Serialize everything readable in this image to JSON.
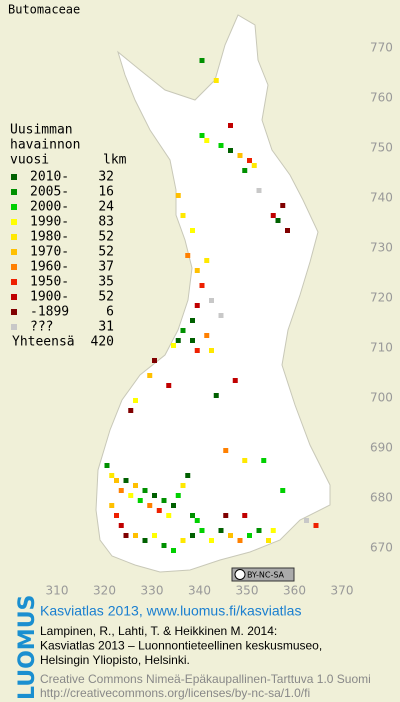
{
  "title": "Butomaceae",
  "legend": {
    "header": [
      "Uusimman",
      "havainnon",
      "vuosi"
    ],
    "count_header": "lkm",
    "rows": [
      {
        "label": "2010-",
        "count": 32,
        "color": "#006000"
      },
      {
        "label": "2005-",
        "count": 16,
        "color": "#009000"
      },
      {
        "label": "2000-",
        "count": 24,
        "color": "#00d000"
      },
      {
        "label": "1990-",
        "count": 83,
        "color": "#ffff00"
      },
      {
        "label": "1980-",
        "count": 52,
        "color": "#ffe800"
      },
      {
        "label": "1970-",
        "count": 52,
        "color": "#ffc000"
      },
      {
        "label": "1960-",
        "count": 37,
        "color": "#ff8000"
      },
      {
        "label": "1950-",
        "count": 35,
        "color": "#ee2000"
      },
      {
        "label": "1900-",
        "count": 52,
        "color": "#c00000"
      },
      {
        "label": "-1899",
        "count": 6,
        "color": "#800000"
      },
      {
        "label": "???",
        "count": 31,
        "color": "#c8c8c8"
      }
    ],
    "total_label": "Yhteensä",
    "total": 420
  },
  "map": {
    "xticks": [
      310,
      320,
      330,
      340,
      350,
      360,
      370
    ],
    "yticks": [
      770,
      760,
      750,
      740,
      730,
      720,
      710,
      700,
      690,
      680,
      670
    ],
    "records": [
      [
        340,
        767,
        1
      ],
      [
        343,
        763,
        4
      ],
      [
        340,
        752,
        2
      ],
      [
        341,
        751,
        3
      ],
      [
        344,
        750,
        2
      ],
      [
        346,
        749,
        0
      ],
      [
        348,
        748,
        5
      ],
      [
        350,
        747,
        7
      ],
      [
        349,
        745,
        1
      ],
      [
        351,
        746,
        4
      ],
      [
        346,
        754,
        8
      ],
      [
        352,
        741,
        10
      ],
      [
        355,
        736,
        8
      ],
      [
        357,
        738,
        9
      ],
      [
        358,
        733,
        9
      ],
      [
        356,
        735,
        0
      ],
      [
        335,
        740,
        5
      ],
      [
        336,
        736,
        4
      ],
      [
        338,
        733,
        3
      ],
      [
        337,
        728,
        6
      ],
      [
        339,
        725,
        5
      ],
      [
        340,
        722,
        7
      ],
      [
        339,
        718,
        8
      ],
      [
        338,
        715,
        0
      ],
      [
        336,
        713,
        1
      ],
      [
        335,
        711,
        0
      ],
      [
        334,
        710,
        3
      ],
      [
        338,
        711,
        0
      ],
      [
        339,
        709,
        7
      ],
      [
        342,
        709,
        4
      ],
      [
        341,
        712,
        6
      ],
      [
        341,
        727,
        4
      ],
      [
        342,
        719,
        10
      ],
      [
        344,
        716,
        10
      ],
      [
        330,
        707,
        9
      ],
      [
        333,
        702,
        8
      ],
      [
        326,
        699,
        3
      ],
      [
        325,
        697,
        9
      ],
      [
        329,
        704,
        5
      ],
      [
        343,
        700,
        0
      ],
      [
        347,
        703,
        8
      ],
      [
        349,
        687,
        4
      ],
      [
        345,
        689,
        6
      ],
      [
        353,
        687,
        2
      ],
      [
        357,
        681,
        2
      ],
      [
        364,
        674,
        7
      ],
      [
        362,
        675,
        10
      ],
      [
        320,
        686,
        1
      ],
      [
        321,
        684,
        4
      ],
      [
        322,
        683,
        5
      ],
      [
        323,
        681,
        6
      ],
      [
        324,
        683,
        0
      ],
      [
        325,
        680,
        3
      ],
      [
        326,
        682,
        5
      ],
      [
        327,
        679,
        2
      ],
      [
        328,
        681,
        1
      ],
      [
        329,
        678,
        6
      ],
      [
        330,
        680,
        0
      ],
      [
        331,
        677,
        7
      ],
      [
        332,
        679,
        1
      ],
      [
        333,
        676,
        3
      ],
      [
        334,
        678,
        0
      ],
      [
        335,
        680,
        2
      ],
      [
        336,
        682,
        4
      ],
      [
        337,
        684,
        0
      ],
      [
        338,
        676,
        1
      ],
      [
        339,
        675,
        2
      ],
      [
        321,
        678,
        5
      ],
      [
        322,
        676,
        7
      ],
      [
        323,
        674,
        8
      ],
      [
        324,
        672,
        9
      ],
      [
        326,
        672,
        5
      ],
      [
        328,
        671,
        0
      ],
      [
        330,
        672,
        3
      ],
      [
        332,
        670,
        1
      ],
      [
        334,
        669,
        2
      ],
      [
        336,
        671,
        4
      ],
      [
        338,
        672,
        0
      ],
      [
        340,
        673,
        2
      ],
      [
        342,
        671,
        3
      ],
      [
        344,
        673,
        0
      ],
      [
        346,
        672,
        5
      ],
      [
        348,
        671,
        6
      ],
      [
        350,
        672,
        2
      ],
      [
        352,
        673,
        1
      ],
      [
        354,
        671,
        4
      ],
      [
        349,
        676,
        8
      ],
      [
        345,
        676,
        9
      ],
      [
        355,
        673,
        3
      ]
    ]
  },
  "badge": "BY-NC-SA",
  "footer": {
    "logo": "LUOMUS",
    "link": "Kasviatlas 2013, www.luomus.fi/kasviatlas",
    "citation": [
      "Lampinen, R., Lahti, T. & Heikkinen M. 2014:",
      "Kasviatlas 2013 – Luonnontieteellinen keskusmuseo,",
      "Helsingin Yliopisto, Helsinki."
    ],
    "license": [
      "Creative Commons Nimeä-Epäkaupallinen-Tarttuva 1.0 Suomi",
      "http://creativecommons.org/licenses/by-nc-sa/1.0/fi"
    ]
  }
}
